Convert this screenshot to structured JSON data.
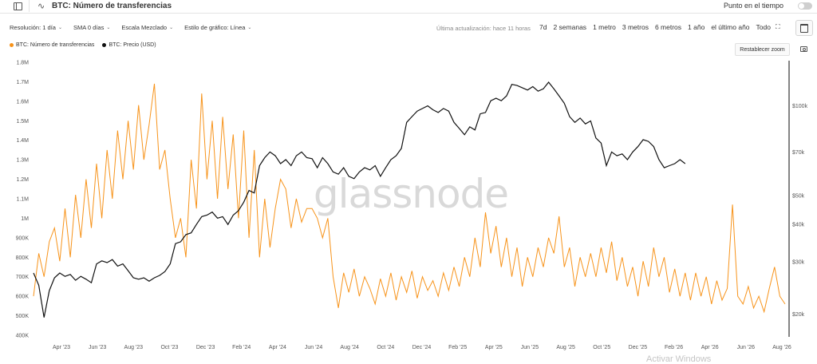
{
  "header": {
    "title": "BTC: Número de transferencias",
    "pulse_icon": "∿",
    "sidebar_icon": "sidebar-toggle-icon",
    "tiempo_label": "Punto en el tiempo"
  },
  "controls": {
    "resolucion": "Resolución: 1 día",
    "sma": "SMA 0 días",
    "escala": "Escala Mezclado",
    "estilo": "Estilo de gráfico: Línea",
    "updated": "Última actualización: hace 11 horas"
  },
  "ranges": [
    "7d",
    "2 semanas",
    "1 metro",
    "3 metros",
    "6 metros",
    "1 año",
    "el último año",
    "Todo"
  ],
  "legend": {
    "series1": "BTC: Número de transferencias",
    "series2": "BTC: Precio (USD)",
    "reset_zoom": "Restablecer zoom"
  },
  "watermark": "glassnode",
  "overlay": "Activar Windows",
  "colors": {
    "transfers": "#f7931a",
    "price": "#111111",
    "bg": "#ffffff"
  },
  "chart_data": {
    "type": "line",
    "x_ticks": [
      "Apr '23",
      "Jun '23",
      "Aug '23",
      "Oct '23",
      "Dec '23",
      "Feb '24",
      "Apr '24",
      "Jun '24",
      "Aug '24",
      "Oct '24",
      "Dec '24",
      "Feb '25",
      "Apr '25",
      "Jun '25",
      "Aug '25",
      "Oct '25",
      "Dec '25",
      "Feb '26",
      "Apr '26",
      "Jun '26",
      "Aug '26"
    ],
    "y_left_ticks": [
      "1.8M",
      "1.7M",
      "1.6M",
      "1.5M",
      "1.4M",
      "1.3M",
      "1.2M",
      "1.1M",
      "1M",
      "900K",
      "800K",
      "700K",
      "600K",
      "500K",
      "400K"
    ],
    "y_left_range": [
      400000,
      1800000
    ],
    "y_right_ticks": [
      "$100k",
      "$70k",
      "$50k",
      "$40k",
      "$30k",
      "$20k"
    ],
    "y_right_values": [
      100000,
      70000,
      50000,
      40000,
      30000,
      20000
    ],
    "y_right_scale": "log",
    "y_right_range": [
      17000,
      140000
    ],
    "grid": false,
    "legend_position": "top-left",
    "series": [
      {
        "name": "BTC: Número de transferencias",
        "axis": "left",
        "color": "#f7931a",
        "points": [
          [
            0,
            600000
          ],
          [
            0.5,
            820000
          ],
          [
            1,
            700000
          ],
          [
            1.5,
            880000
          ],
          [
            2,
            950000
          ],
          [
            2.5,
            780000
          ],
          [
            3,
            1050000
          ],
          [
            3.5,
            800000
          ],
          [
            4,
            1120000
          ],
          [
            4.5,
            900000
          ],
          [
            5,
            1200000
          ],
          [
            5.5,
            950000
          ],
          [
            6,
            1280000
          ],
          [
            6.5,
            1000000
          ],
          [
            7,
            1350000
          ],
          [
            7.5,
            1100000
          ],
          [
            8,
            1450000
          ],
          [
            8.5,
            1200000
          ],
          [
            9,
            1500000
          ],
          [
            9.5,
            1250000
          ],
          [
            10,
            1580000
          ],
          [
            10.5,
            1300000
          ],
          [
            11,
            1480000
          ],
          [
            11.5,
            1690000
          ],
          [
            12,
            1250000
          ],
          [
            12.5,
            1350000
          ],
          [
            13,
            1100000
          ],
          [
            13.5,
            900000
          ],
          [
            14,
            1000000
          ],
          [
            14.5,
            800000
          ],
          [
            15,
            1300000
          ],
          [
            15.5,
            1050000
          ],
          [
            16,
            1640000
          ],
          [
            16.5,
            1200000
          ],
          [
            17,
            1500000
          ],
          [
            17.5,
            1100000
          ],
          [
            18,
            1520000
          ],
          [
            18.5,
            1150000
          ],
          [
            19,
            1430000
          ],
          [
            19.5,
            1000000
          ],
          [
            20,
            1450000
          ],
          [
            20.5,
            900000
          ],
          [
            21,
            1350000
          ],
          [
            21.5,
            800000
          ],
          [
            22,
            1100000
          ],
          [
            22.5,
            850000
          ],
          [
            23,
            1050000
          ],
          [
            23.5,
            1200000
          ],
          [
            24,
            1150000
          ],
          [
            24.5,
            950000
          ],
          [
            25,
            1100000
          ],
          [
            25.5,
            980000
          ],
          [
            26,
            1050000
          ],
          [
            26.5,
            1050000
          ],
          [
            27,
            1000000
          ],
          [
            27.5,
            900000
          ],
          [
            28,
            1000000
          ],
          [
            28.5,
            700000
          ],
          [
            29,
            540000
          ],
          [
            29.5,
            720000
          ],
          [
            30,
            620000
          ],
          [
            30.5,
            740000
          ],
          [
            31,
            600000
          ],
          [
            31.5,
            700000
          ],
          [
            32,
            640000
          ],
          [
            32.5,
            560000
          ],
          [
            33,
            690000
          ],
          [
            33.5,
            600000
          ],
          [
            34,
            720000
          ],
          [
            34.5,
            580000
          ],
          [
            35,
            700000
          ],
          [
            35.5,
            620000
          ],
          [
            36,
            730000
          ],
          [
            36.5,
            590000
          ],
          [
            37,
            700000
          ],
          [
            37.5,
            630000
          ],
          [
            38,
            680000
          ],
          [
            38.5,
            600000
          ],
          [
            39,
            720000
          ],
          [
            39.5,
            630000
          ],
          [
            40,
            750000
          ],
          [
            40.5,
            650000
          ],
          [
            41,
            800000
          ],
          [
            41.5,
            700000
          ],
          [
            42,
            900000
          ],
          [
            42.5,
            750000
          ],
          [
            43,
            1030000
          ],
          [
            43.5,
            820000
          ],
          [
            44,
            960000
          ],
          [
            44.5,
            750000
          ],
          [
            45,
            900000
          ],
          [
            45.5,
            700000
          ],
          [
            46,
            850000
          ],
          [
            46.5,
            650000
          ],
          [
            47,
            800000
          ],
          [
            47.5,
            700000
          ],
          [
            48,
            850000
          ],
          [
            48.5,
            750000
          ],
          [
            49,
            900000
          ],
          [
            49.5,
            820000
          ],
          [
            50,
            1010000
          ],
          [
            50.5,
            750000
          ],
          [
            51,
            850000
          ],
          [
            51.5,
            650000
          ],
          [
            52,
            800000
          ],
          [
            52.5,
            700000
          ],
          [
            53,
            820000
          ],
          [
            53.5,
            700000
          ],
          [
            54,
            850000
          ],
          [
            54.5,
            720000
          ],
          [
            55,
            880000
          ],
          [
            55.5,
            680000
          ],
          [
            56,
            800000
          ],
          [
            56.5,
            650000
          ],
          [
            57,
            750000
          ],
          [
            57.5,
            600000
          ],
          [
            58,
            780000
          ],
          [
            58.5,
            650000
          ],
          [
            59,
            850000
          ],
          [
            59.5,
            700000
          ],
          [
            60,
            800000
          ],
          [
            60.5,
            620000
          ],
          [
            61,
            740000
          ],
          [
            61.5,
            600000
          ],
          [
            62,
            720000
          ],
          [
            62.5,
            580000
          ],
          [
            63,
            720000
          ],
          [
            63.5,
            600000
          ],
          [
            64,
            700000
          ],
          [
            64.5,
            560000
          ],
          [
            65,
            680000
          ],
          [
            65.5,
            580000
          ],
          [
            66,
            640000
          ],
          [
            66.5,
            1070000
          ],
          [
            67,
            600000
          ],
          [
            67.5,
            560000
          ],
          [
            68,
            650000
          ],
          [
            68.5,
            540000
          ],
          [
            69,
            600000
          ],
          [
            69.5,
            520000
          ],
          [
            70,
            640000
          ],
          [
            70.5,
            750000
          ],
          [
            71,
            600000
          ],
          [
            71.5,
            560000
          ]
        ]
      },
      {
        "name": "BTC: Precio (USD)",
        "axis": "right",
        "color": "#111111",
        "points": [
          [
            0,
            27500
          ],
          [
            0.5,
            25000
          ],
          [
            1,
            19500
          ],
          [
            1.5,
            24000
          ],
          [
            2,
            26500
          ],
          [
            2.5,
            27500
          ],
          [
            3,
            26800
          ],
          [
            3.5,
            27200
          ],
          [
            4,
            26000
          ],
          [
            4.5,
            26800
          ],
          [
            5,
            26200
          ],
          [
            5.5,
            25500
          ],
          [
            6,
            29500
          ],
          [
            6.5,
            30200
          ],
          [
            7,
            29800
          ],
          [
            7.5,
            30500
          ],
          [
            8,
            29000
          ],
          [
            8.5,
            29500
          ],
          [
            9,
            28000
          ],
          [
            9.5,
            26500
          ],
          [
            10,
            26200
          ],
          [
            10.5,
            26500
          ],
          [
            11,
            25800
          ],
          [
            11.5,
            26500
          ],
          [
            12,
            27000
          ],
          [
            12.5,
            27800
          ],
          [
            13,
            29500
          ],
          [
            13.5,
            34500
          ],
          [
            14,
            35000
          ],
          [
            14.5,
            37000
          ],
          [
            15,
            37500
          ],
          [
            15.5,
            40000
          ],
          [
            16,
            42500
          ],
          [
            16.5,
            43000
          ],
          [
            17,
            44000
          ],
          [
            17.5,
            42000
          ],
          [
            18,
            42500
          ],
          [
            18.5,
            40000
          ],
          [
            19,
            43000
          ],
          [
            19.5,
            44500
          ],
          [
            20,
            47500
          ],
          [
            20.5,
            52000
          ],
          [
            21,
            51000
          ],
          [
            21.5,
            63000
          ],
          [
            22,
            67000
          ],
          [
            22.5,
            70000
          ],
          [
            23,
            68000
          ],
          [
            23.5,
            64000
          ],
          [
            24,
            66000
          ],
          [
            24.5,
            63000
          ],
          [
            25,
            68000
          ],
          [
            25.5,
            70000
          ],
          [
            26,
            67000
          ],
          [
            26.5,
            66500
          ],
          [
            27,
            62000
          ],
          [
            27.5,
            67000
          ],
          [
            28,
            64000
          ],
          [
            28.5,
            60000
          ],
          [
            29,
            59000
          ],
          [
            29.5,
            62000
          ],
          [
            30,
            58000
          ],
          [
            30.5,
            57000
          ],
          [
            31,
            60000
          ],
          [
            31.5,
            62000
          ],
          [
            32,
            61000
          ],
          [
            32.5,
            63000
          ],
          [
            33,
            58000
          ],
          [
            33.5,
            62000
          ],
          [
            34,
            66000
          ],
          [
            34.5,
            68000
          ],
          [
            35,
            72000
          ],
          [
            35.5,
            88000
          ],
          [
            36,
            92000
          ],
          [
            36.5,
            96000
          ],
          [
            37,
            98000
          ],
          [
            37.5,
            100000
          ],
          [
            38,
            97000
          ],
          [
            38.5,
            95000
          ],
          [
            39,
            98000
          ],
          [
            39.5,
            96000
          ],
          [
            40,
            88000
          ],
          [
            40.5,
            84000
          ],
          [
            41,
            80000
          ],
          [
            41.5,
            85000
          ],
          [
            42,
            83000
          ],
          [
            42.5,
            94000
          ],
          [
            43,
            95000
          ],
          [
            43.5,
            104000
          ],
          [
            44,
            106000
          ],
          [
            44.5,
            104000
          ],
          [
            45,
            108000
          ],
          [
            45.5,
            118000
          ],
          [
            46,
            117000
          ],
          [
            46.5,
            115000
          ],
          [
            47,
            113000
          ],
          [
            47.5,
            116000
          ],
          [
            48,
            112000
          ],
          [
            48.5,
            114000
          ],
          [
            49,
            120000
          ],
          [
            49.5,
            114000
          ],
          [
            50,
            108000
          ],
          [
            50.5,
            102000
          ],
          [
            51,
            92000
          ],
          [
            51.5,
            88000
          ],
          [
            52,
            91000
          ],
          [
            52.5,
            87000
          ],
          [
            53,
            89000
          ],
          [
            53.5,
            78000
          ],
          [
            54,
            75000
          ],
          [
            54.5,
            63000
          ],
          [
            55,
            70000
          ],
          [
            55.5,
            68000
          ],
          [
            56,
            69000
          ],
          [
            56.5,
            66000
          ],
          [
            57,
            70000
          ],
          [
            57.5,
            73000
          ],
          [
            58,
            77000
          ],
          [
            58.5,
            76000
          ],
          [
            59,
            73000
          ],
          [
            59.5,
            66000
          ],
          [
            60,
            62000
          ],
          [
            60.5,
            63000
          ],
          [
            61,
            64000
          ],
          [
            61.5,
            66000
          ],
          [
            62,
            64000
          ]
        ]
      }
    ]
  }
}
